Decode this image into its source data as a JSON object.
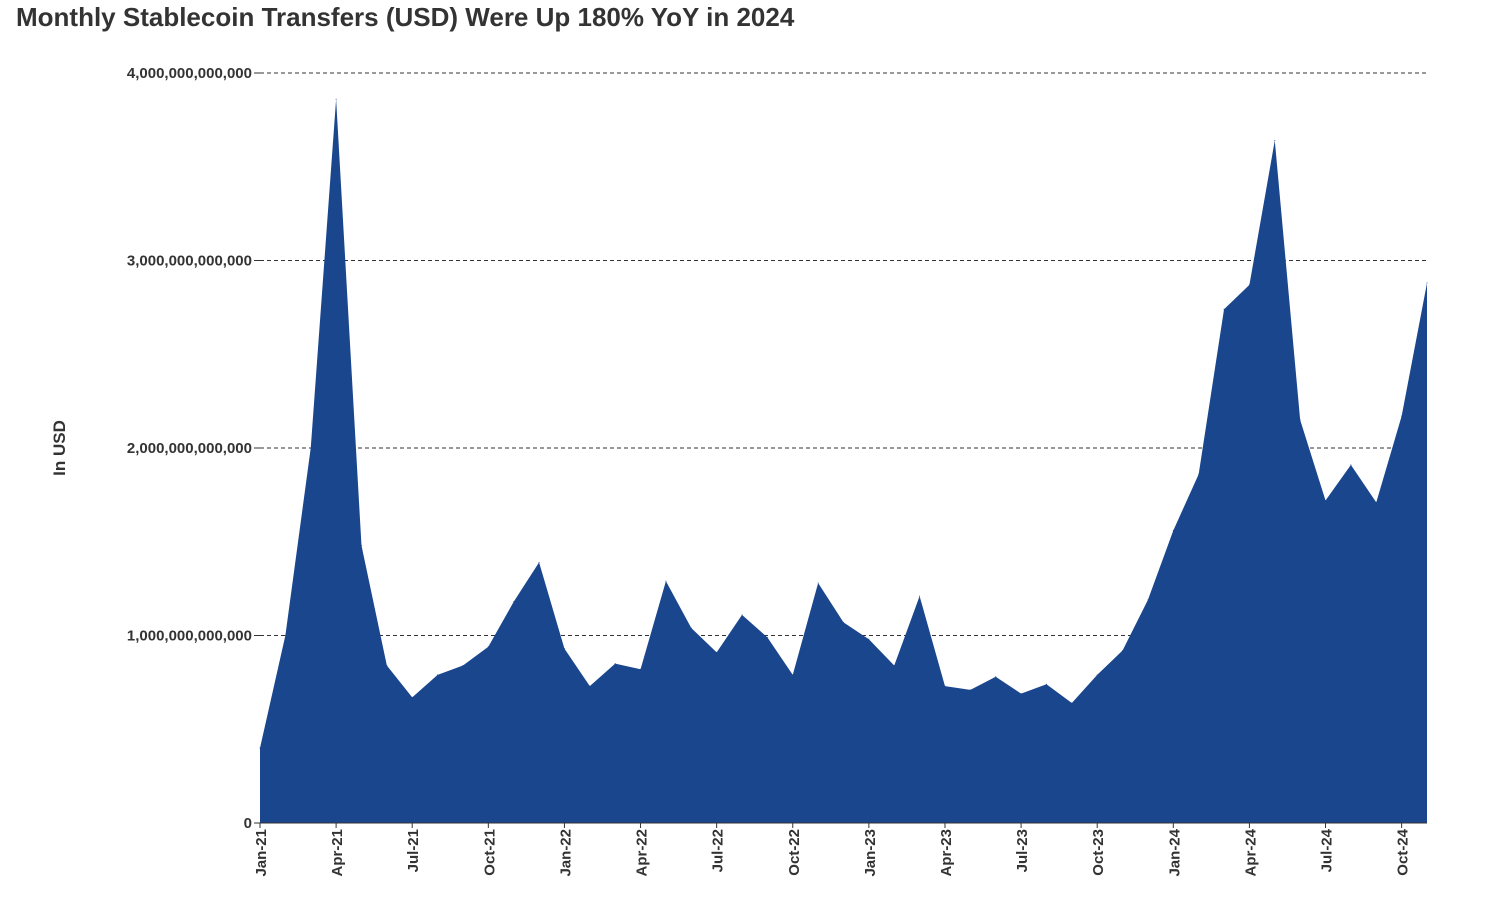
{
  "chart_data": {
    "type": "area",
    "title": "Monthly Stablecoin Transfers (USD) Were Up 180% YoY in 2024",
    "ylabel": "In USD",
    "xlabel": "",
    "ylim": [
      0,
      4000000000000
    ],
    "yticks": [
      0,
      1000000000000,
      2000000000000,
      3000000000000,
      4000000000000
    ],
    "ytick_labels": [
      "0",
      "1,000,000,000,000",
      "2,000,000,000,000",
      "3,000,000,000,000",
      "4,000,000,000,000"
    ],
    "grid": "horizontal dashed",
    "color": "#1a468e",
    "x": [
      "Jan-21",
      "Feb-21",
      "Mar-21",
      "Apr-21",
      "May-21",
      "Jun-21",
      "Jul-21",
      "Aug-21",
      "Sep-21",
      "Oct-21",
      "Nov-21",
      "Dec-21",
      "Jan-22",
      "Feb-22",
      "Mar-22",
      "Apr-22",
      "May-22",
      "Jun-22",
      "Jul-22",
      "Aug-22",
      "Sep-22",
      "Oct-22",
      "Nov-22",
      "Dec-22",
      "Jan-23",
      "Feb-23",
      "Mar-23",
      "Apr-23",
      "May-23",
      "Jun-23",
      "Jul-23",
      "Aug-23",
      "Sep-23",
      "Oct-23",
      "Nov-23",
      "Dec-23",
      "Jan-24",
      "Feb-24",
      "Mar-24",
      "Apr-24",
      "May-24",
      "Jun-24",
      "Jul-24",
      "Aug-24",
      "Sep-24",
      "Oct-24",
      "Nov-24"
    ],
    "xtick_labels": [
      "Jan-21",
      "Apr-21",
      "Jul-21",
      "Oct-21",
      "Jan-22",
      "Apr-22",
      "Jul-22",
      "Oct-22",
      "Jan-23",
      "Apr-23",
      "Jul-23",
      "Oct-23",
      "Jan-24",
      "Apr-24",
      "Jul-24",
      "Oct-24"
    ],
    "series": [
      {
        "values": [
          400000000000,
          1000000000000,
          2000000000000,
          3860000000000,
          1480000000000,
          840000000000,
          670000000000,
          790000000000,
          840000000000,
          940000000000,
          1180000000000,
          1390000000000,
          930000000000,
          730000000000,
          850000000000,
          820000000000,
          1290000000000,
          1040000000000,
          910000000000,
          1110000000000,
          990000000000,
          790000000000,
          1280000000000,
          1070000000000,
          980000000000,
          840000000000,
          1210000000000,
          730000000000,
          710000000000,
          780000000000,
          690000000000,
          740000000000,
          640000000000,
          790000000000,
          920000000000,
          1190000000000,
          1560000000000,
          1860000000000,
          2740000000000,
          2870000000000,
          3640000000000,
          2150000000000,
          1720000000000,
          1910000000000,
          1710000000000,
          2170000000000,
          2880000000000
        ]
      }
    ]
  }
}
